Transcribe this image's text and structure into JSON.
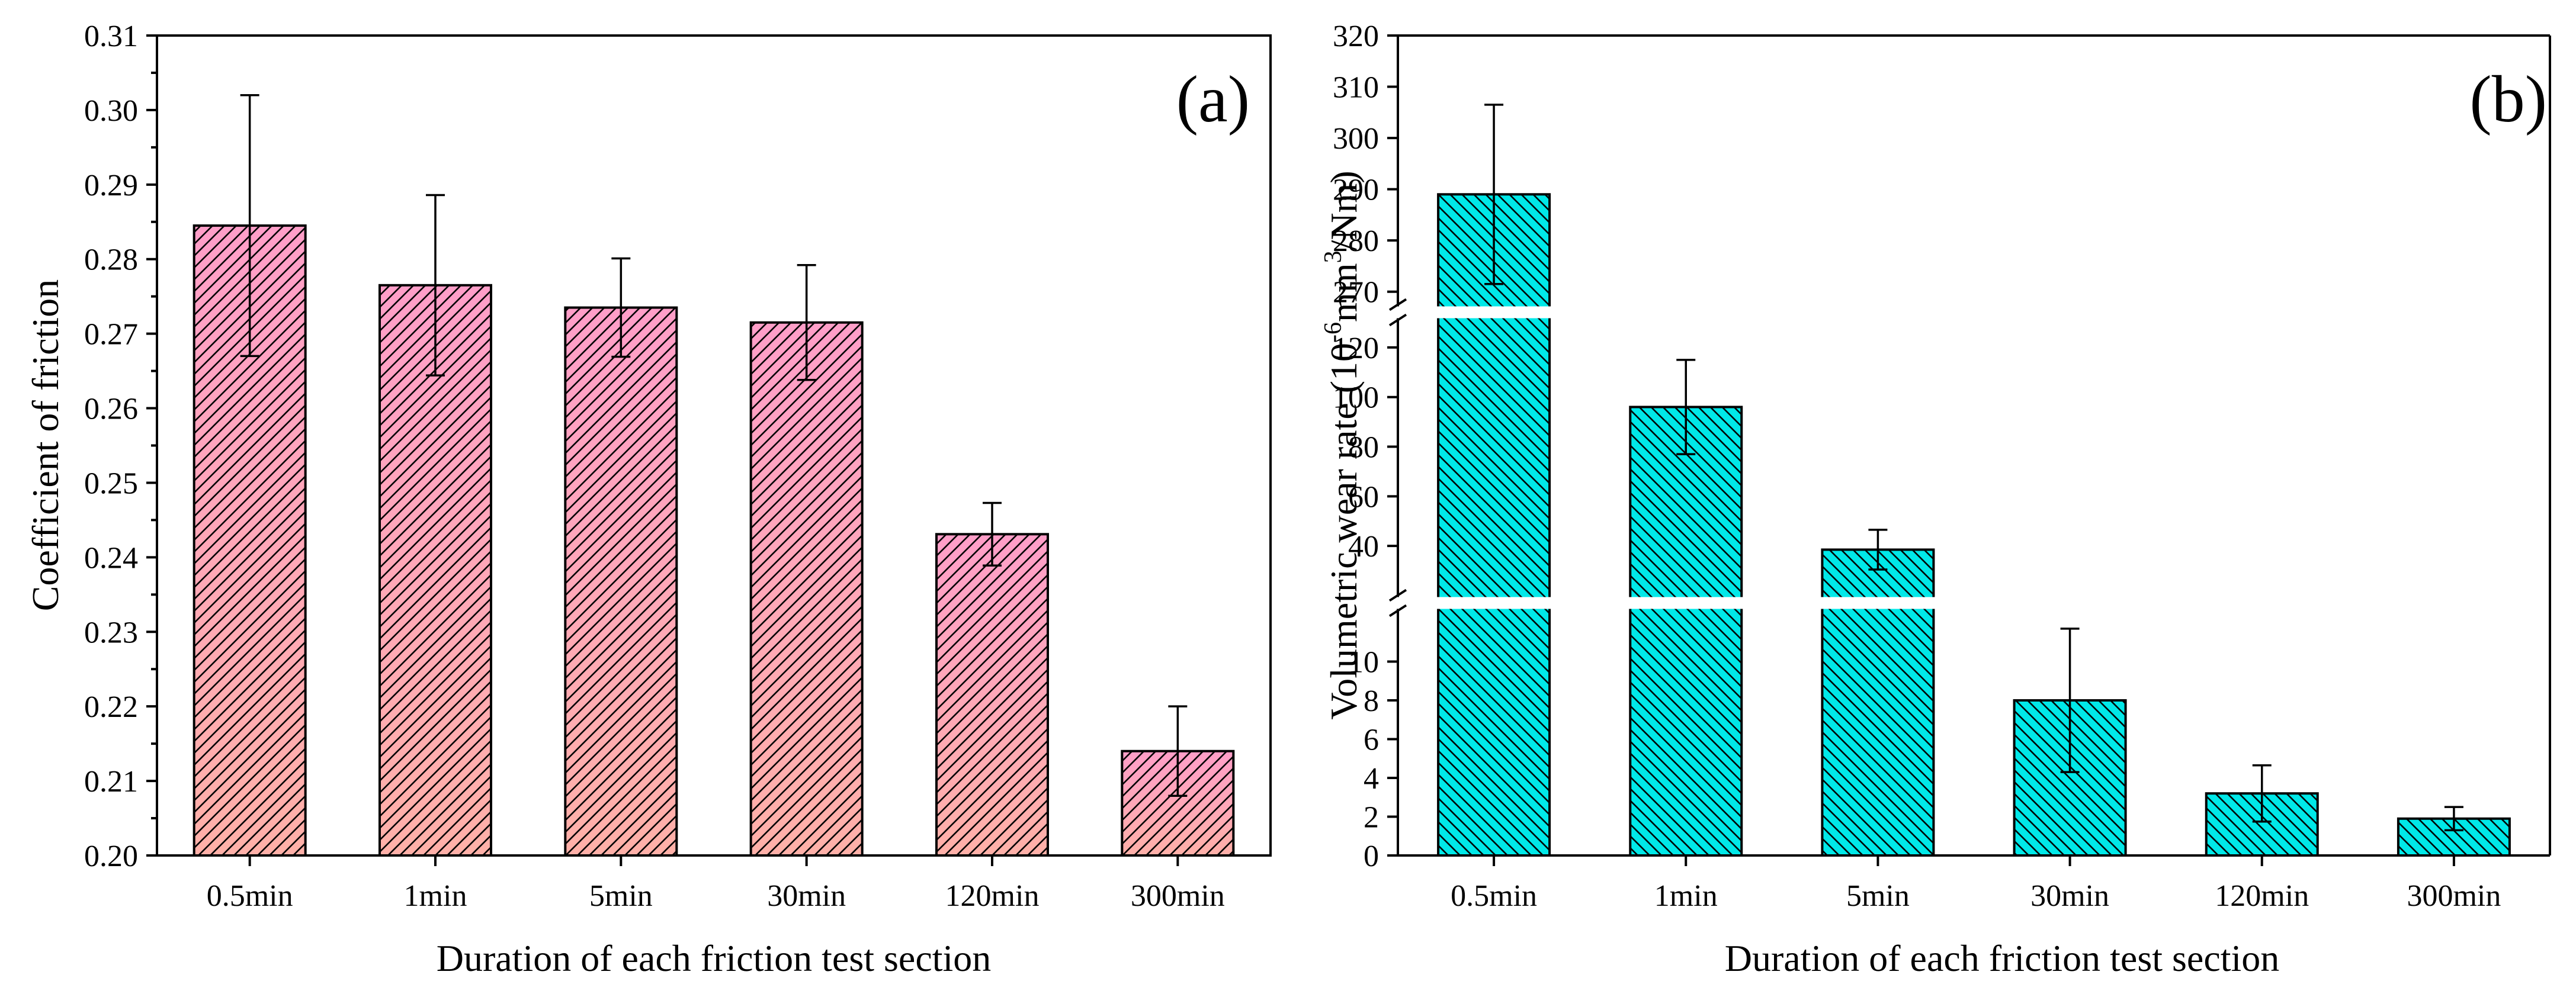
{
  "chart_data": [
    {
      "type": "bar",
      "panel_label": "(a)",
      "title": "",
      "xlabel": "Duration of each friction test section",
      "ylabel": "Coefficient of friction",
      "categories": [
        "0.5min",
        "1min",
        "5min",
        "30min",
        "120min",
        "300min"
      ],
      "values": [
        0.2845,
        0.2765,
        0.2735,
        0.2715,
        0.2431,
        0.214
      ],
      "errors": [
        0.0175,
        0.0121,
        0.0066,
        0.0077,
        0.0042,
        0.006
      ],
      "ylim": [
        0.2,
        0.31
      ],
      "yticks": [
        "0.20",
        "0.21",
        "0.22",
        "0.23",
        "0.24",
        "0.25",
        "0.26",
        "0.27",
        "0.28",
        "0.29",
        "0.30",
        "0.31"
      ],
      "color": "#ff9ec8",
      "color_bottom": "#ffb0a8",
      "hatch": "diagonal",
      "grid": false
    },
    {
      "type": "bar",
      "panel_label": "(b)",
      "title": "",
      "xlabel": "Duration of each friction test section",
      "ylabel": "Volumetric wear rate (10",
      "ylabel_sup1": "-6",
      "ylabel_mid": "mm",
      "ylabel_sup2": "3",
      "ylabel_end": "/Nm)",
      "categories": [
        "0.5min",
        "1min",
        "5min",
        "30min",
        "120min",
        "300min"
      ],
      "values": [
        289,
        96,
        38.5,
        8.0,
        3.2,
        1.9
      ],
      "errors": [
        17.5,
        19,
        8,
        3.7,
        1.45,
        0.6
      ],
      "broken_axis": true,
      "segments": [
        {
          "range": [
            0,
            12
          ],
          "ticks": [
            "0",
            "2",
            "4",
            "6",
            "8",
            "10"
          ]
        },
        {
          "range": [
            25,
            130
          ],
          "ticks": [
            "40",
            "60",
            "80",
            "100",
            "120"
          ]
        },
        {
          "range": [
            268,
            320
          ],
          "ticks": [
            "270",
            "280",
            "290",
            "300",
            "310",
            "320"
          ]
        }
      ],
      "color": "#00e8e8",
      "hatch": "diagonal",
      "grid": false
    }
  ]
}
